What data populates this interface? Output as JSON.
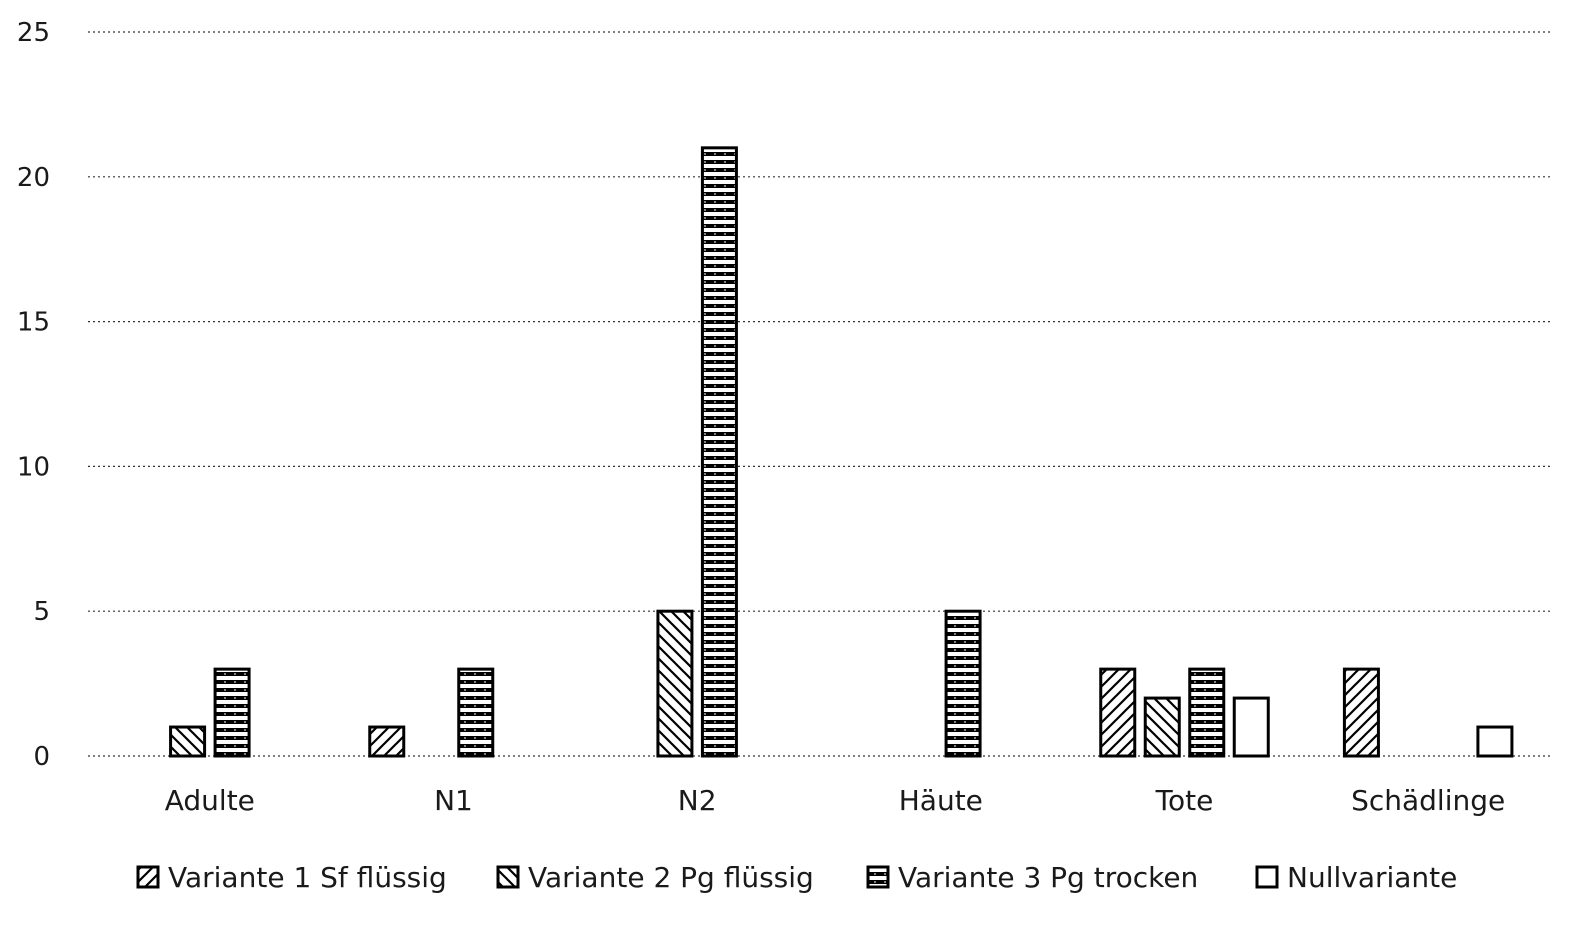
{
  "chart_data": {
    "type": "bar",
    "categories": [
      "Adulte",
      "N1",
      "N2",
      "Häute",
      "Tote",
      "Schädlinge"
    ],
    "series": [
      {
        "name": "Variante 1 Sf flüssig",
        "values": [
          0,
          1,
          0,
          0,
          3,
          3
        ],
        "pattern": "hatch-forward"
      },
      {
        "name": "Variante 2 Pg flüssig",
        "values": [
          1,
          0,
          5,
          0,
          2,
          0
        ],
        "pattern": "hatch-back"
      },
      {
        "name": "Variante 3 Pg trocken",
        "values": [
          3,
          3,
          21,
          5,
          3,
          0
        ],
        "pattern": "horizontal-stripes"
      },
      {
        "name": "Nullvariante",
        "values": [
          0,
          0,
          0,
          0,
          2,
          1
        ],
        "pattern": "none"
      }
    ],
    "yticks": [
      "0",
      "5",
      "10",
      "15",
      "20",
      "25"
    ],
    "ylim": [
      0,
      25
    ],
    "grid": true,
    "legend_position": "bottom",
    "colors": {
      "stroke": "#000000",
      "fill": "#ffffff",
      "grid": "#333333"
    }
  }
}
